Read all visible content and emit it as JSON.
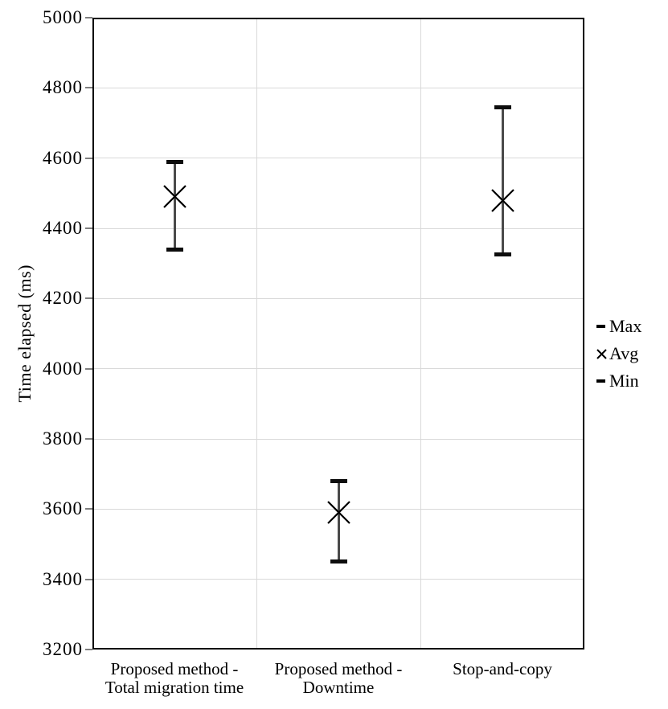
{
  "chart_data": {
    "type": "scatter",
    "subtype": "high-low-error-bars",
    "title": "",
    "xlabel": "",
    "ylabel": "Time elapsed (ms)",
    "ylim": [
      3200,
      5000
    ],
    "ytick_step": 200,
    "yticks": [
      5000,
      4800,
      4600,
      4400,
      4200,
      4000,
      3800,
      3600,
      3400,
      3200
    ],
    "grid": true,
    "legend_position": "right",
    "categories": [
      "Proposed method - Total migration time",
      "Proposed method - Downtime",
      "Stop-and-copy"
    ],
    "category_lines": [
      [
        "Proposed method -",
        "Total migration time"
      ],
      [
        "Proposed method -",
        "Downtime"
      ],
      [
        "Stop-and-copy"
      ]
    ],
    "series": [
      {
        "name": "Max",
        "marker": "dash",
        "values": [
          4590,
          3680,
          4745
        ]
      },
      {
        "name": "Avg",
        "marker": "x",
        "values": [
          4490,
          3590,
          4480
        ]
      },
      {
        "name": "Min",
        "marker": "dash",
        "values": [
          4340,
          3450,
          4325
        ]
      }
    ],
    "colors": {
      "axis_border": "#000000",
      "gridline": "#d9d9d9",
      "tick_mark": "#7f7f7f",
      "error_bar_line": "#4a4a4a",
      "cap": "#0d0d0d",
      "marker": "#000000",
      "text": "#000000",
      "background": "#ffffff"
    }
  }
}
